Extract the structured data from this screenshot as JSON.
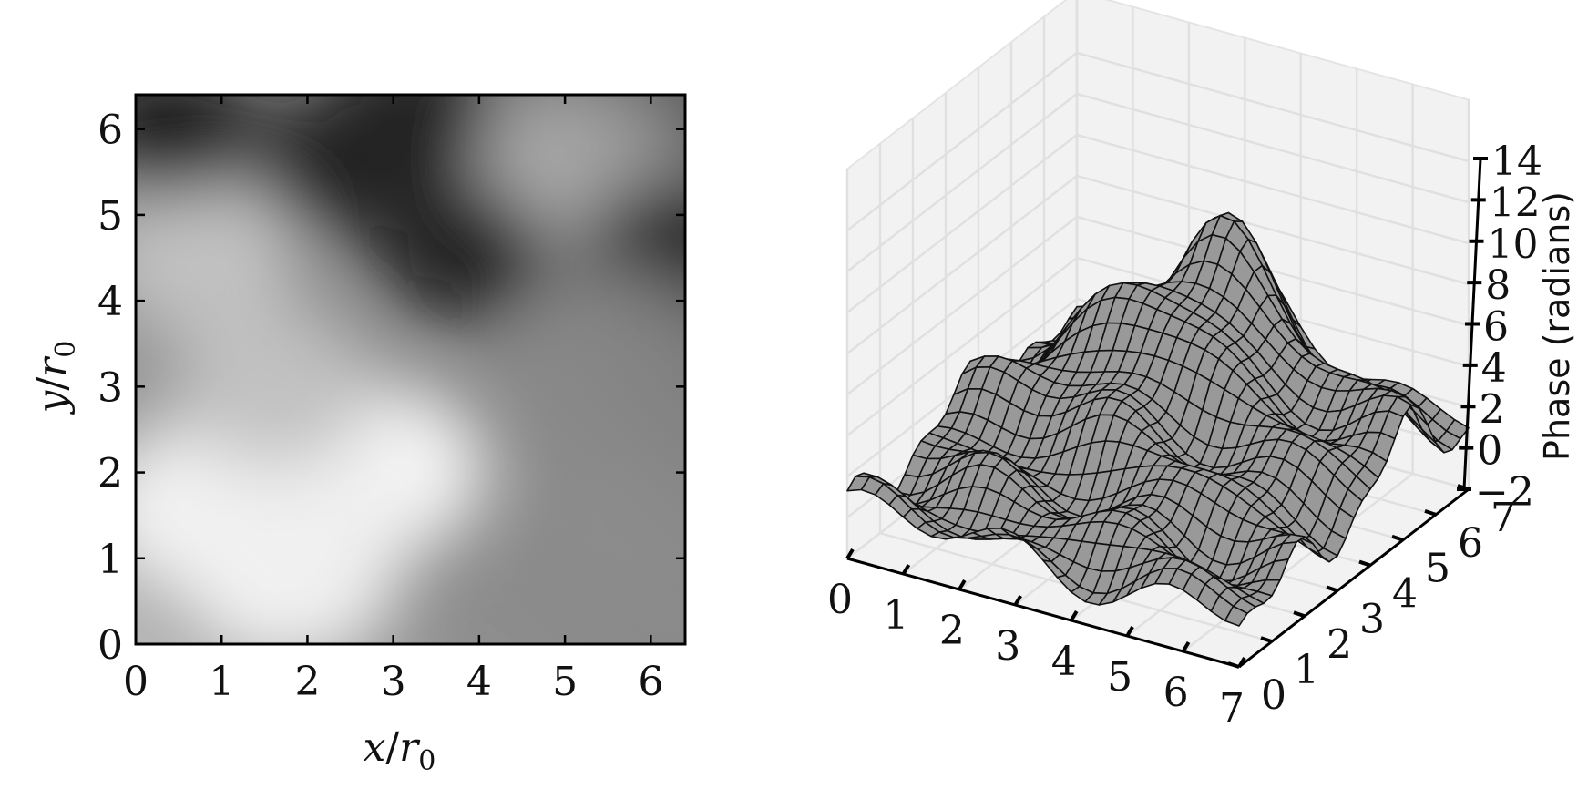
{
  "chart_data": [
    {
      "type": "heatmap",
      "title": "",
      "colormap": "gray",
      "xlabel_var": "x",
      "xlabel_sep": "/",
      "xlabel_base": "r",
      "xlabel_sub": "0",
      "ylabel_var": "y",
      "ylabel_sep": "/",
      "ylabel_base": "r",
      "ylabel_sub": "0",
      "xlim": [
        0,
        6.4
      ],
      "ylim": [
        0,
        6.4
      ],
      "xticks": [
        "0",
        "1",
        "2",
        "3",
        "4",
        "5",
        "6"
      ],
      "yticks": [
        "0",
        "1",
        "2",
        "3",
        "4",
        "5",
        "6"
      ],
      "grid": false,
      "intensity_features": [
        {
          "x": 1.8,
          "y": 0.8,
          "level": "bright"
        },
        {
          "x": 0.8,
          "y": 1.6,
          "level": "bright"
        },
        {
          "x": 2.8,
          "y": 2.0,
          "level": "bright"
        },
        {
          "x": 0.7,
          "y": 4.5,
          "level": "light"
        },
        {
          "x": 5.2,
          "y": 5.7,
          "level": "light"
        },
        {
          "x": 1.6,
          "y": 3.0,
          "level": "light"
        },
        {
          "x": 3.8,
          "y": 4.6,
          "level": "dark"
        },
        {
          "x": 2.4,
          "y": 5.6,
          "level": "dark"
        },
        {
          "x": 0.4,
          "y": 6.0,
          "level": "dark"
        },
        {
          "x": 6.2,
          "y": 4.6,
          "level": "dark"
        },
        {
          "x": 3.2,
          "y": 6.2,
          "level": "dark"
        },
        {
          "x": 5.6,
          "y": 3.6,
          "level": "mid"
        },
        {
          "x": 5.8,
          "y": 1.4,
          "level": "mid"
        }
      ]
    },
    {
      "type": "surface3d",
      "title": "",
      "zlabel": "Phase (radians)",
      "xlim": [
        0,
        7
      ],
      "ylim": [
        0,
        7
      ],
      "zlim": [
        -2,
        14
      ],
      "xticks": [
        "0",
        "1",
        "2",
        "3",
        "4",
        "5",
        "6",
        "7"
      ],
      "yticks": [
        "0",
        "1",
        "2",
        "3",
        "4",
        "5",
        "6",
        "7"
      ],
      "zticks": [
        "−2",
        "0",
        "2",
        "4",
        "6",
        "8",
        "10",
        "12",
        "14"
      ],
      "surface_color": "#999999",
      "wire_color": "#111111",
      "grid": true,
      "peaks": [
        {
          "x": 3.2,
          "y": 6.4,
          "z": 13.0
        },
        {
          "x": 2.8,
          "y": 4.8,
          "z": 8.0
        },
        {
          "x": 6.2,
          "y": 5.2,
          "z": 7.0
        },
        {
          "x": 1.0,
          "y": 4.2,
          "z": 5.0
        },
        {
          "x": 4.5,
          "y": 3.0,
          "z": 4.0
        }
      ],
      "base_level": 0.5
    }
  ]
}
